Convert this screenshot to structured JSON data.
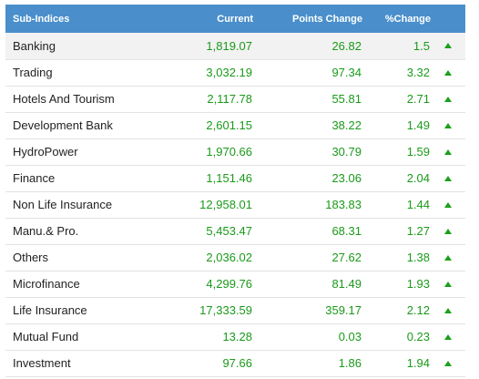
{
  "headers": {
    "sub_indices": "Sub-Indices",
    "current": "Current",
    "points_change": "Points Change",
    "percent_change": "%Change"
  },
  "colors": {
    "header_bg": "#4a8fcb",
    "positive": "#1a9a1a",
    "up_arrow": "#1aa01a"
  },
  "rows": [
    {
      "name": "Banking",
      "current": "1,819.07",
      "points": "26.82",
      "pct": "1.5",
      "trend": "up-arrow-icon"
    },
    {
      "name": "Trading",
      "current": "3,032.19",
      "points": "97.34",
      "pct": "3.32",
      "trend": "up-arrow-icon"
    },
    {
      "name": "Hotels And Tourism",
      "current": "2,117.78",
      "points": "55.81",
      "pct": "2.71",
      "trend": "up-arrow-icon"
    },
    {
      "name": "Development Bank",
      "current": "2,601.15",
      "points": "38.22",
      "pct": "1.49",
      "trend": "up-arrow-icon"
    },
    {
      "name": "HydroPower",
      "current": "1,970.66",
      "points": "30.79",
      "pct": "1.59",
      "trend": "up-arrow-icon"
    },
    {
      "name": "Finance",
      "current": "1,151.46",
      "points": "23.06",
      "pct": "2.04",
      "trend": "up-arrow-icon"
    },
    {
      "name": "Non Life Insurance",
      "current": "12,958.01",
      "points": "183.83",
      "pct": "1.44",
      "trend": "up-arrow-icon"
    },
    {
      "name": "Manu.& Pro.",
      "current": "5,453.47",
      "points": "68.31",
      "pct": "1.27",
      "trend": "up-arrow-icon"
    },
    {
      "name": "Others",
      "current": "2,036.02",
      "points": "27.62",
      "pct": "1.38",
      "trend": "up-arrow-icon"
    },
    {
      "name": "Microfinance",
      "current": "4,299.76",
      "points": "81.49",
      "pct": "1.93",
      "trend": "up-arrow-icon"
    },
    {
      "name": "Life Insurance",
      "current": "17,333.59",
      "points": "359.17",
      "pct": "2.12",
      "trend": "up-arrow-icon"
    },
    {
      "name": "Mutual Fund",
      "current": "13.28",
      "points": "0.03",
      "pct": "0.23",
      "trend": "up-arrow-icon"
    },
    {
      "name": "Investment",
      "current": "97.66",
      "points": "1.86",
      "pct": "1.94",
      "trend": "up-arrow-icon"
    }
  ]
}
